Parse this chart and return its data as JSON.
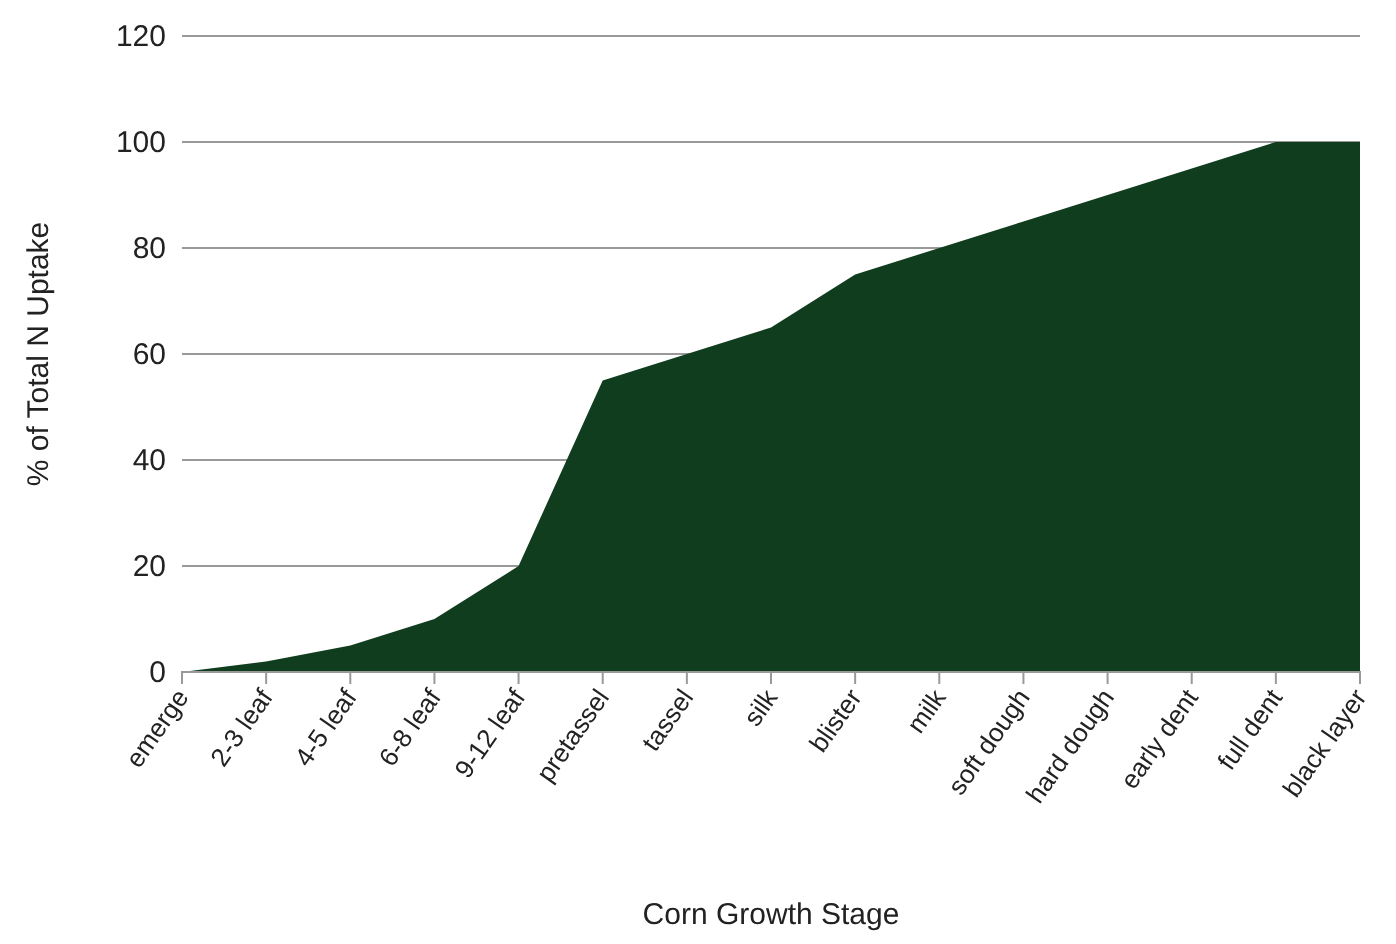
{
  "chart_data": {
    "type": "area",
    "xlabel": "Corn Growth Stage",
    "ylabel": "% of Total N Uptake",
    "categories": [
      "emerge",
      "2-3 leaf",
      "4-5 leaf",
      "6-8 leaf",
      "9-12 leaf",
      "pretassel",
      "tassel",
      "silk",
      "blister",
      "milk",
      "soft dough",
      "hard dough",
      "early dent",
      "full dent",
      "black layer"
    ],
    "series": [
      {
        "color": "#0f3d1e",
        "values": [
          0,
          2,
          5,
          10,
          20,
          55,
          60,
          65,
          75,
          80,
          85,
          90,
          95,
          100,
          100
        ]
      }
    ],
    "ylim": [
      0,
      120
    ],
    "yticks": [
      0,
      20,
      40,
      60,
      80,
      100,
      120
    ],
    "grid": "y"
  }
}
